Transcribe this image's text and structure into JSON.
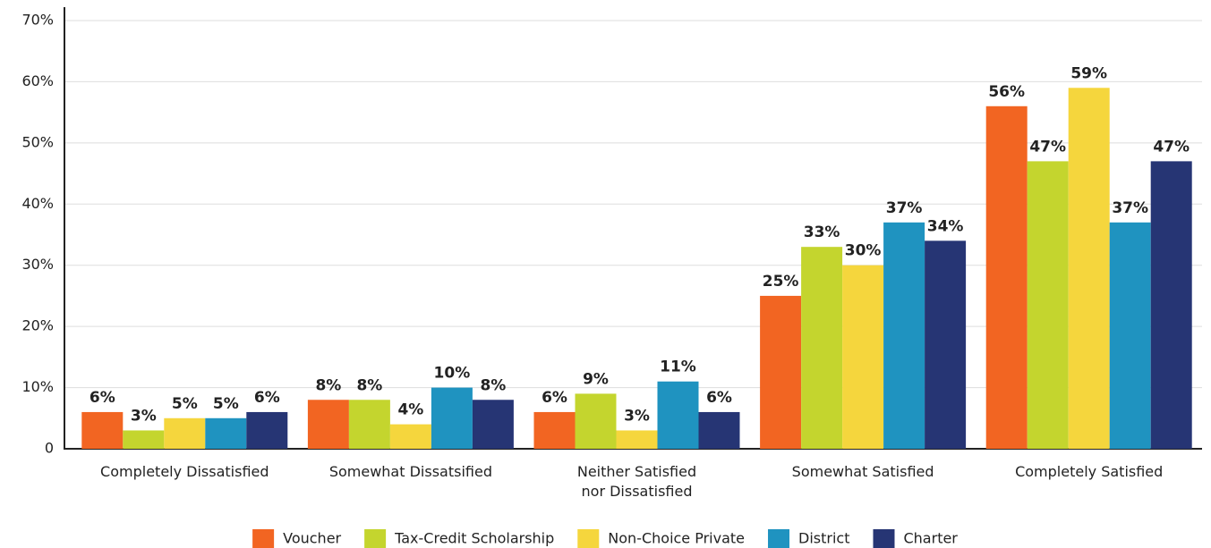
{
  "chart_data": {
    "type": "bar",
    "categories": [
      "Completely Dissatisfied",
      "Somewhat Dissatsified",
      "Neither Satisfied\nnor Dissatisfied",
      "Somewhat Satisfied",
      "Completely Satisfied"
    ],
    "series": [
      {
        "name": "Voucher",
        "color": "#f26522",
        "values": [
          6,
          8,
          6,
          25,
          56
        ],
        "value_labels": [
          "6%",
          "8%",
          "6%",
          "25%",
          "56%"
        ]
      },
      {
        "name": "Tax-Credit Scholarship",
        "color": "#c4d52e",
        "values": [
          3,
          8,
          9,
          33,
          47
        ],
        "value_labels": [
          "3%",
          "8%",
          "9%",
          "33%",
          "47%"
        ]
      },
      {
        "name": "Non-Choice Private",
        "color": "#f5d63d",
        "values": [
          5,
          4,
          3,
          30,
          59
        ],
        "value_labels": [
          "5%",
          "4%",
          "3%",
          "30%",
          "59%"
        ]
      },
      {
        "name": "District",
        "color": "#1f93c0",
        "values": [
          5,
          10,
          11,
          37,
          37
        ],
        "value_labels": [
          "5%",
          "10%",
          "11%",
          "37%",
          "37%"
        ]
      },
      {
        "name": "Charter",
        "color": "#263574",
        "values": [
          6,
          8,
          6,
          34,
          47
        ],
        "value_labels": [
          "6%",
          "8%",
          "6%",
          "34%",
          "47%"
        ]
      }
    ],
    "ylim": [
      0,
      70
    ],
    "yticks": [
      0,
      {
        "value": 10,
        "label": "10%"
      },
      {
        "value": 20,
        "label": "20%"
      },
      {
        "value": 30,
        "label": "30%"
      },
      {
        "value": 40,
        "label": "40%"
      },
      {
        "value": 50,
        "label": "50%"
      },
      {
        "value": 60,
        "label": "60%"
      },
      {
        "value": 70,
        "label": "70%"
      }
    ],
    "grid": true,
    "legend": "bottom"
  }
}
